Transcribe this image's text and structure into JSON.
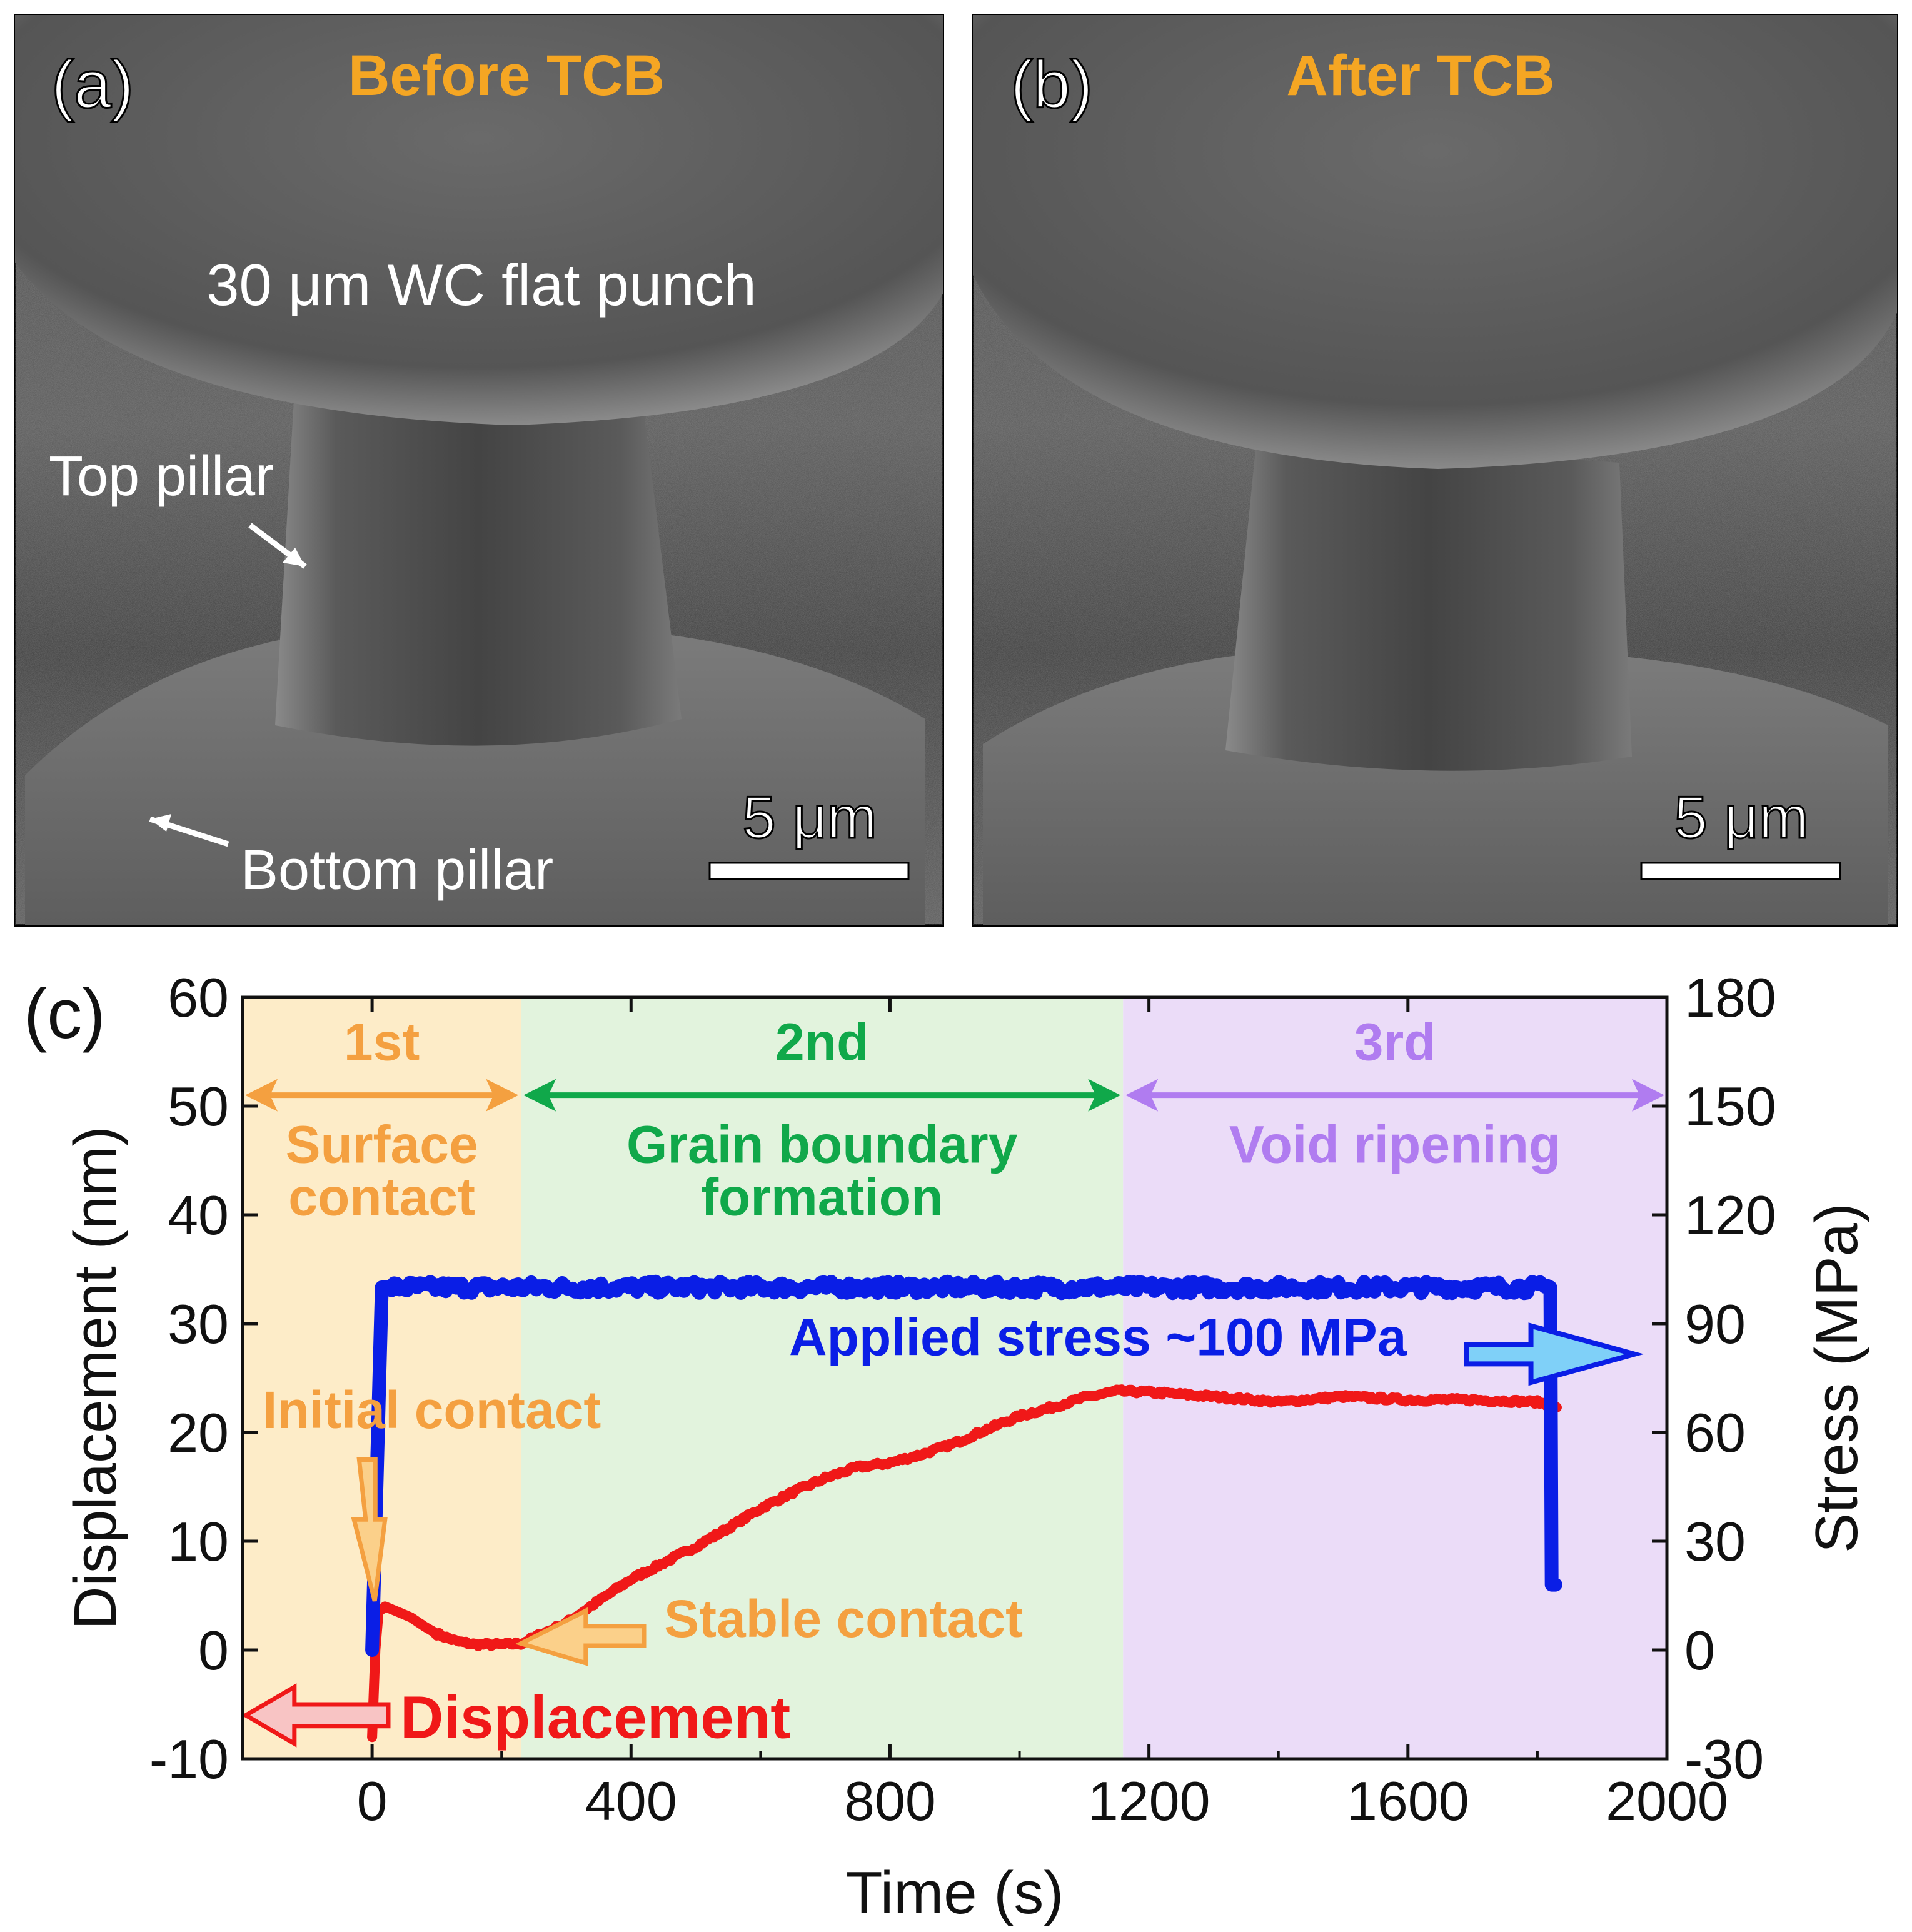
{
  "panels": {
    "a": {
      "letter": "(a)",
      "title": "Before TCB",
      "punch_label": "30 μm WC flat punch",
      "top_pillar_label": "Top pillar",
      "bottom_pillar_label": "Bottom pillar",
      "scale_bar": "5 μm"
    },
    "b": {
      "letter": "(b)",
      "title": "After TCB",
      "scale_bar": "5 μm"
    },
    "c": {
      "letter": "(c)"
    }
  },
  "colors": {
    "title": "#f5a623",
    "stage1_bg": "#fdecc8",
    "stage2_bg": "#e2f3dd",
    "stage3_bg": "#ebdcf8",
    "stage1": "#f4a040",
    "stage2": "#10a84a",
    "stage3": "#b07cf0",
    "stress": "#0a1ee6",
    "displacement": "#f01818",
    "annotation": "#f4a040"
  },
  "chart_data": {
    "type": "line",
    "xlabel": "Time (s)",
    "ylabel_left": "Displacement (nm)",
    "ylabel_right": "Stress (MPa)",
    "xlim": [
      -200,
      2000
    ],
    "ylim_left": [
      -10,
      60
    ],
    "ylim_right": [
      -30,
      180
    ],
    "x_ticks": [
      "0",
      "400",
      "800",
      "1200",
      "1600",
      "2000"
    ],
    "y_left_ticks": [
      "-10",
      "0",
      "10",
      "20",
      "30",
      "40",
      "50",
      "60"
    ],
    "y_right_ticks": [
      "-30",
      "0",
      "30",
      "60",
      "90",
      "120",
      "150",
      "180"
    ],
    "stages": [
      {
        "name": "1st",
        "label": "Surface contact",
        "x_start": -200,
        "x_end": 230
      },
      {
        "name": "2nd",
        "label": "Grain boundary formation",
        "x_start": 230,
        "x_end": 1160
      },
      {
        "name": "3rd",
        "label": "Void ripening",
        "x_start": 1160,
        "x_end": 2000
      }
    ],
    "series": [
      {
        "name": "Displacement",
        "axis": "left",
        "color": "#f01818",
        "x": [
          0,
          5,
          10,
          20,
          40,
          60,
          80,
          100,
          130,
          160,
          200,
          230,
          300,
          350,
          400,
          450,
          500,
          550,
          600,
          650,
          700,
          750,
          800,
          850,
          900,
          950,
          1000,
          1050,
          1100,
          1150,
          1200,
          1300,
          1400,
          1500,
          1600,
          1700,
          1800,
          1830
        ],
        "values": [
          -8,
          0,
          3.5,
          4,
          3.5,
          3,
          2.2,
          1.5,
          0.8,
          0.5,
          0.5,
          0.6,
          2.5,
          4.5,
          6.5,
          8,
          9.5,
          11.2,
          13,
          14.5,
          15.8,
          16.8,
          17.2,
          18,
          19,
          20.3,
          21.5,
          22.3,
          23.2,
          23.8,
          23.7,
          23.3,
          22.8,
          23.3,
          23.0,
          23.0,
          22.8,
          22.3
        ]
      },
      {
        "name": "Applied stress",
        "axis": "right",
        "color": "#0a1ee6",
        "x": [
          0,
          15,
          30,
          1820,
          1822,
          1828
        ],
        "values": [
          0,
          100,
          100,
          100,
          18,
          18
        ]
      }
    ],
    "annotations": {
      "initial_contact": "Initial contact",
      "stable_contact": "Stable contact",
      "displacement": "Displacement",
      "applied_stress": "Applied stress ~100 MPa"
    }
  }
}
